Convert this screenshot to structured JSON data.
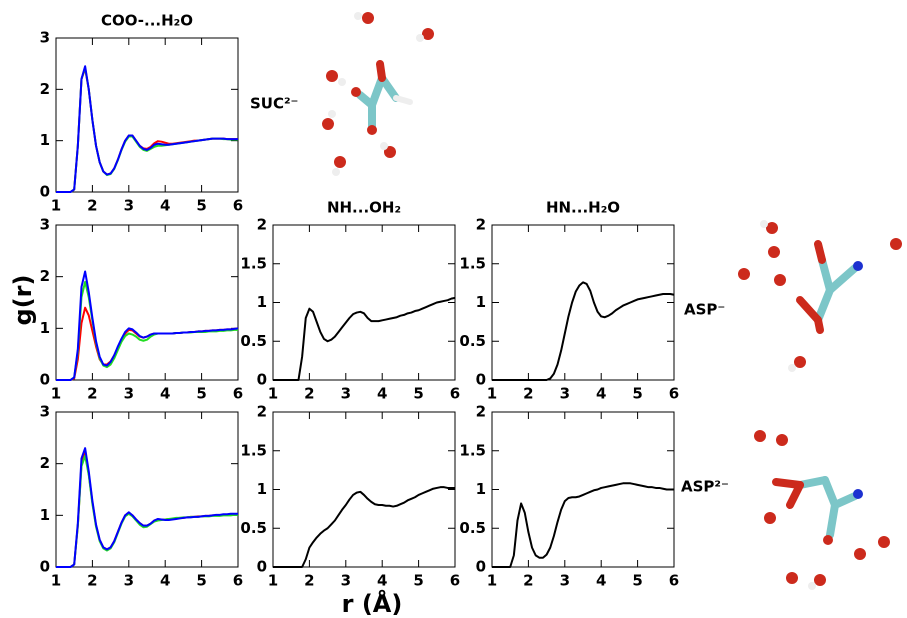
{
  "axis_labels": {
    "y": "g(r)",
    "x": "r (Å)"
  },
  "molecule_labels": [
    "SUC²⁻",
    "ASP⁻",
    "ASP²⁻"
  ],
  "chart_data": [
    {
      "type": "line",
      "title": "COO-...H₂O",
      "xlim": [
        1,
        6
      ],
      "xticks": [
        1,
        2,
        3,
        4,
        5,
        6
      ],
      "ylim": [
        0,
        3
      ],
      "yticks": [
        0,
        1,
        2,
        3
      ],
      "x": [
        1.0,
        1.1,
        1.2,
        1.3,
        1.4,
        1.5,
        1.6,
        1.7,
        1.8,
        1.9,
        2.0,
        2.1,
        2.2,
        2.3,
        2.4,
        2.5,
        2.6,
        2.7,
        2.8,
        2.9,
        3.0,
        3.1,
        3.2,
        3.3,
        3.4,
        3.5,
        3.6,
        3.7,
        3.8,
        3.9,
        4.0,
        4.1,
        4.2,
        4.3,
        4.4,
        4.5,
        4.6,
        4.7,
        4.8,
        4.9,
        5.0,
        5.1,
        5.2,
        5.3,
        5.4,
        5.5,
        5.6,
        5.7,
        5.8,
        5.9,
        6.0
      ],
      "series": [
        {
          "color": "#ff0000",
          "values": [
            0,
            0,
            0,
            0,
            0,
            0.05,
            0.9,
            2.2,
            2.4,
            2.0,
            1.4,
            0.9,
            0.58,
            0.4,
            0.34,
            0.36,
            0.46,
            0.63,
            0.83,
            1.0,
            1.1,
            1.1,
            1.0,
            0.9,
            0.85,
            0.84,
            0.88,
            0.95,
            0.99,
            0.98,
            0.96,
            0.94,
            0.94,
            0.95,
            0.96,
            0.97,
            0.98,
            0.99,
            1.0,
            1.0,
            1.01,
            1.02,
            1.03,
            1.04,
            1.04,
            1.04,
            1.04,
            1.03,
            1.03,
            1.03,
            1.03
          ]
        },
        {
          "color": "#22dd22",
          "values": [
            0,
            0,
            0,
            0,
            0,
            0.05,
            0.9,
            2.2,
            2.42,
            2.0,
            1.4,
            0.9,
            0.58,
            0.4,
            0.33,
            0.35,
            0.45,
            0.62,
            0.82,
            0.98,
            1.08,
            1.08,
            0.98,
            0.88,
            0.82,
            0.8,
            0.84,
            0.88,
            0.9,
            0.9,
            0.91,
            0.92,
            0.93,
            0.94,
            0.95,
            0.96,
            0.97,
            0.98,
            0.99,
            1.0,
            1.01,
            1.02,
            1.03,
            1.04,
            1.04,
            1.04,
            1.03,
            1.03,
            1.02,
            1.02,
            1.02
          ]
        },
        {
          "color": "#0000ff",
          "values": [
            0,
            0,
            0,
            0,
            0,
            0.05,
            0.9,
            2.2,
            2.45,
            2.0,
            1.4,
            0.9,
            0.58,
            0.4,
            0.34,
            0.36,
            0.46,
            0.63,
            0.83,
            1.0,
            1.1,
            1.1,
            1.0,
            0.9,
            0.84,
            0.82,
            0.86,
            0.92,
            0.94,
            0.93,
            0.92,
            0.92,
            0.93,
            0.94,
            0.95,
            0.96,
            0.97,
            0.98,
            0.99,
            1.0,
            1.01,
            1.02,
            1.03,
            1.04,
            1.04,
            1.04,
            1.04,
            1.03,
            1.03,
            1.03,
            1.03
          ]
        }
      ]
    },
    {
      "type": "line",
      "xlim": [
        1,
        6
      ],
      "xticks": [
        1,
        2,
        3,
        4,
        5,
        6
      ],
      "ylim": [
        0,
        3
      ],
      "yticks": [
        0,
        1,
        2,
        3
      ],
      "x": [
        1.0,
        1.1,
        1.2,
        1.3,
        1.4,
        1.5,
        1.6,
        1.7,
        1.8,
        1.9,
        2.0,
        2.1,
        2.2,
        2.3,
        2.4,
        2.5,
        2.6,
        2.7,
        2.8,
        2.9,
        3.0,
        3.1,
        3.2,
        3.3,
        3.4,
        3.5,
        3.6,
        3.7,
        3.8,
        3.9,
        4.0,
        4.1,
        4.2,
        4.3,
        4.4,
        4.5,
        4.6,
        4.7,
        4.8,
        4.9,
        5.0,
        5.1,
        5.2,
        5.3,
        5.4,
        5.5,
        5.6,
        5.7,
        5.8,
        5.9,
        6.0
      ],
      "series": [
        {
          "color": "#ff0000",
          "values": [
            0,
            0,
            0,
            0,
            0,
            0.03,
            0.4,
            1.1,
            1.4,
            1.25,
            0.95,
            0.65,
            0.4,
            0.3,
            0.3,
            0.36,
            0.48,
            0.63,
            0.78,
            0.9,
            0.97,
            0.96,
            0.9,
            0.84,
            0.82,
            0.84,
            0.88,
            0.9,
            0.9,
            0.9,
            0.9,
            0.9,
            0.9,
            0.91,
            0.91,
            0.92,
            0.92,
            0.93,
            0.93,
            0.94,
            0.94,
            0.95,
            0.95,
            0.96,
            0.96,
            0.97,
            0.97,
            0.98,
            0.98,
            0.99,
            1.0
          ]
        },
        {
          "color": "#22dd22",
          "values": [
            0,
            0,
            0,
            0,
            0,
            0.05,
            0.55,
            1.6,
            1.9,
            1.6,
            1.15,
            0.72,
            0.42,
            0.28,
            0.25,
            0.3,
            0.42,
            0.58,
            0.74,
            0.85,
            0.9,
            0.88,
            0.84,
            0.78,
            0.76,
            0.78,
            0.84,
            0.88,
            0.9,
            0.9,
            0.9,
            0.9,
            0.9,
            0.91,
            0.91,
            0.92,
            0.92,
            0.92,
            0.93,
            0.93,
            0.93,
            0.93,
            0.94,
            0.94,
            0.94,
            0.95,
            0.95,
            0.96,
            0.96,
            0.97,
            0.97
          ]
        },
        {
          "color": "#0000ff",
          "values": [
            0,
            0,
            0,
            0,
            0,
            0.05,
            0.6,
            1.8,
            2.1,
            1.7,
            1.2,
            0.75,
            0.45,
            0.3,
            0.28,
            0.35,
            0.48,
            0.65,
            0.8,
            0.93,
            1.0,
            0.98,
            0.92,
            0.85,
            0.82,
            0.84,
            0.88,
            0.9,
            0.9,
            0.9,
            0.9,
            0.9,
            0.9,
            0.91,
            0.91,
            0.92,
            0.92,
            0.93,
            0.93,
            0.94,
            0.94,
            0.95,
            0.95,
            0.96,
            0.96,
            0.97,
            0.97,
            0.98,
            0.98,
            0.99,
            1.0
          ]
        }
      ]
    },
    {
      "type": "line",
      "title": "NH...OH₂",
      "xlim": [
        1,
        6
      ],
      "xticks": [
        1,
        2,
        3,
        4,
        5,
        6
      ],
      "ylim": [
        0,
        2
      ],
      "yticks": [
        0,
        0.5,
        1,
        1.5,
        2
      ],
      "x": [
        1.0,
        1.1,
        1.2,
        1.3,
        1.4,
        1.5,
        1.6,
        1.7,
        1.8,
        1.9,
        2.0,
        2.1,
        2.2,
        2.3,
        2.4,
        2.5,
        2.6,
        2.7,
        2.8,
        2.9,
        3.0,
        3.1,
        3.2,
        3.3,
        3.4,
        3.5,
        3.6,
        3.7,
        3.8,
        3.9,
        4.0,
        4.1,
        4.2,
        4.3,
        4.4,
        4.5,
        4.6,
        4.7,
        4.8,
        4.9,
        5.0,
        5.1,
        5.2,
        5.3,
        5.4,
        5.5,
        5.6,
        5.7,
        5.8,
        5.9,
        6.0
      ],
      "series": [
        {
          "color": "#000000",
          "values": [
            0,
            0,
            0,
            0,
            0,
            0,
            0,
            0,
            0.3,
            0.8,
            0.92,
            0.88,
            0.75,
            0.62,
            0.53,
            0.5,
            0.52,
            0.56,
            0.62,
            0.68,
            0.74,
            0.8,
            0.85,
            0.87,
            0.88,
            0.86,
            0.8,
            0.76,
            0.76,
            0.76,
            0.77,
            0.78,
            0.79,
            0.8,
            0.81,
            0.83,
            0.84,
            0.86,
            0.87,
            0.89,
            0.9,
            0.92,
            0.94,
            0.96,
            0.98,
            1.0,
            1.01,
            1.02,
            1.03,
            1.05,
            1.06
          ]
        }
      ]
    },
    {
      "type": "line",
      "title": "HN...H₂O",
      "xlim": [
        1,
        6
      ],
      "xticks": [
        1,
        2,
        3,
        4,
        5,
        6
      ],
      "ylim": [
        0,
        2
      ],
      "yticks": [
        0,
        0.5,
        1,
        1.5,
        2
      ],
      "x": [
        1.0,
        1.1,
        1.2,
        1.3,
        1.4,
        1.5,
        1.6,
        1.7,
        1.8,
        1.9,
        2.0,
        2.1,
        2.2,
        2.3,
        2.4,
        2.5,
        2.6,
        2.7,
        2.8,
        2.9,
        3.0,
        3.1,
        3.2,
        3.3,
        3.4,
        3.5,
        3.6,
        3.7,
        3.8,
        3.9,
        4.0,
        4.1,
        4.2,
        4.3,
        4.4,
        4.5,
        4.6,
        4.7,
        4.8,
        4.9,
        5.0,
        5.1,
        5.2,
        5.3,
        5.4,
        5.5,
        5.6,
        5.7,
        5.8,
        5.9,
        6.0
      ],
      "series": [
        {
          "color": "#000000",
          "values": [
            0,
            0,
            0,
            0,
            0,
            0,
            0,
            0,
            0,
            0,
            0,
            0,
            0,
            0,
            0,
            0,
            0.02,
            0.08,
            0.2,
            0.38,
            0.6,
            0.82,
            1.0,
            1.14,
            1.22,
            1.26,
            1.24,
            1.15,
            1.0,
            0.88,
            0.82,
            0.81,
            0.83,
            0.86,
            0.9,
            0.93,
            0.96,
            0.98,
            1.0,
            1.02,
            1.04,
            1.05,
            1.06,
            1.07,
            1.08,
            1.09,
            1.1,
            1.11,
            1.11,
            1.11,
            1.1
          ]
        }
      ]
    },
    {
      "type": "line",
      "xlim": [
        1,
        6
      ],
      "xticks": [
        1,
        2,
        3,
        4,
        5,
        6
      ],
      "ylim": [
        0,
        3
      ],
      "yticks": [
        0,
        1,
        2,
        3
      ],
      "x": [
        1.0,
        1.1,
        1.2,
        1.3,
        1.4,
        1.5,
        1.6,
        1.7,
        1.8,
        1.9,
        2.0,
        2.1,
        2.2,
        2.3,
        2.4,
        2.5,
        2.6,
        2.7,
        2.8,
        2.9,
        3.0,
        3.1,
        3.2,
        3.3,
        3.4,
        3.5,
        3.6,
        3.7,
        3.8,
        3.9,
        4.0,
        4.1,
        4.2,
        4.3,
        4.4,
        4.5,
        4.6,
        4.7,
        4.8,
        4.9,
        5.0,
        5.1,
        5.2,
        5.3,
        5.4,
        5.5,
        5.6,
        5.7,
        5.8,
        5.9,
        6.0
      ],
      "series": [
        {
          "color": "#ff0000",
          "values": [
            0,
            0,
            0,
            0,
            0,
            0.05,
            0.8,
            2.0,
            2.2,
            1.8,
            1.25,
            0.8,
            0.52,
            0.38,
            0.34,
            0.38,
            0.5,
            0.68,
            0.86,
            1.0,
            1.05,
            1.0,
            0.92,
            0.85,
            0.8,
            0.8,
            0.84,
            0.9,
            0.92,
            0.92,
            0.92,
            0.93,
            0.93,
            0.94,
            0.95,
            0.95,
            0.96,
            0.97,
            0.97,
            0.98,
            0.98,
            0.99,
            0.99,
            1.0,
            1.0,
            1.0,
            1.01,
            1.01,
            1.02,
            1.02,
            1.02
          ]
        },
        {
          "color": "#22dd22",
          "values": [
            0,
            0,
            0,
            0,
            0,
            0.05,
            0.8,
            1.95,
            2.15,
            1.78,
            1.22,
            0.78,
            0.5,
            0.36,
            0.32,
            0.36,
            0.48,
            0.66,
            0.84,
            0.98,
            1.03,
            0.98,
            0.9,
            0.82,
            0.77,
            0.78,
            0.83,
            0.88,
            0.9,
            0.91,
            0.92,
            0.93,
            0.94,
            0.95,
            0.95,
            0.96,
            0.96,
            0.97,
            0.97,
            0.97,
            0.98,
            0.98,
            0.98,
            0.99,
            0.99,
            0.99,
            1.0,
            1.0,
            1.0,
            1.01,
            1.01
          ]
        },
        {
          "color": "#0000ff",
          "values": [
            0,
            0,
            0,
            0,
            0,
            0.05,
            0.85,
            2.1,
            2.3,
            1.85,
            1.28,
            0.82,
            0.53,
            0.38,
            0.34,
            0.38,
            0.5,
            0.68,
            0.86,
            1.0,
            1.06,
            1.0,
            0.92,
            0.85,
            0.8,
            0.8,
            0.84,
            0.9,
            0.93,
            0.92,
            0.91,
            0.91,
            0.92,
            0.93,
            0.94,
            0.95,
            0.96,
            0.96,
            0.97,
            0.97,
            0.98,
            0.99,
            0.99,
            1.0,
            1.01,
            1.01,
            1.02,
            1.02,
            1.03,
            1.03,
            1.03
          ]
        }
      ]
    },
    {
      "type": "line",
      "xlim": [
        1,
        6
      ],
      "xticks": [
        1,
        2,
        3,
        4,
        5,
        6
      ],
      "ylim": [
        0,
        2
      ],
      "yticks": [
        0,
        0.5,
        1,
        1.5,
        2
      ],
      "x": [
        1.0,
        1.1,
        1.2,
        1.3,
        1.4,
        1.5,
        1.6,
        1.7,
        1.8,
        1.9,
        2.0,
        2.1,
        2.2,
        2.3,
        2.4,
        2.5,
        2.6,
        2.7,
        2.8,
        2.9,
        3.0,
        3.1,
        3.2,
        3.3,
        3.4,
        3.5,
        3.6,
        3.7,
        3.8,
        3.9,
        4.0,
        4.1,
        4.2,
        4.3,
        4.4,
        4.5,
        4.6,
        4.7,
        4.8,
        4.9,
        5.0,
        5.1,
        5.2,
        5.3,
        5.4,
        5.5,
        5.6,
        5.7,
        5.8,
        5.9,
        6.0
      ],
      "series": [
        {
          "color": "#000000",
          "values": [
            0,
            0,
            0,
            0,
            0,
            0,
            0,
            0,
            0,
            0.1,
            0.25,
            0.32,
            0.38,
            0.43,
            0.47,
            0.5,
            0.55,
            0.6,
            0.67,
            0.74,
            0.8,
            0.87,
            0.93,
            0.96,
            0.97,
            0.93,
            0.88,
            0.84,
            0.81,
            0.8,
            0.8,
            0.79,
            0.79,
            0.78,
            0.79,
            0.81,
            0.83,
            0.86,
            0.88,
            0.9,
            0.93,
            0.95,
            0.97,
            0.99,
            1.01,
            1.02,
            1.03,
            1.03,
            1.02,
            1.02,
            1.02
          ]
        }
      ]
    },
    {
      "type": "line",
      "xlim": [
        1,
        6
      ],
      "xticks": [
        1,
        2,
        3,
        4,
        5,
        6
      ],
      "ylim": [
        0,
        2
      ],
      "yticks": [
        0,
        0.5,
        1,
        1.5,
        2
      ],
      "x": [
        1.0,
        1.1,
        1.2,
        1.3,
        1.4,
        1.5,
        1.6,
        1.7,
        1.8,
        1.9,
        2.0,
        2.1,
        2.2,
        2.3,
        2.4,
        2.5,
        2.6,
        2.7,
        2.8,
        2.9,
        3.0,
        3.1,
        3.2,
        3.3,
        3.4,
        3.5,
        3.6,
        3.7,
        3.8,
        3.9,
        4.0,
        4.1,
        4.2,
        4.3,
        4.4,
        4.5,
        4.6,
        4.7,
        4.8,
        4.9,
        5.0,
        5.1,
        5.2,
        5.3,
        5.4,
        5.5,
        5.6,
        5.7,
        5.8,
        5.9,
        6.0
      ],
      "series": [
        {
          "color": "#000000",
          "values": [
            0,
            0,
            0,
            0,
            0,
            0,
            0.15,
            0.6,
            0.82,
            0.7,
            0.45,
            0.25,
            0.15,
            0.12,
            0.12,
            0.16,
            0.25,
            0.4,
            0.58,
            0.74,
            0.85,
            0.89,
            0.9,
            0.9,
            0.91,
            0.93,
            0.95,
            0.97,
            0.99,
            1.0,
            1.02,
            1.03,
            1.04,
            1.05,
            1.06,
            1.07,
            1.08,
            1.08,
            1.08,
            1.07,
            1.06,
            1.05,
            1.04,
            1.03,
            1.03,
            1.02,
            1.02,
            1.01,
            1.0,
            1.0,
            1.0
          ]
        }
      ]
    }
  ]
}
